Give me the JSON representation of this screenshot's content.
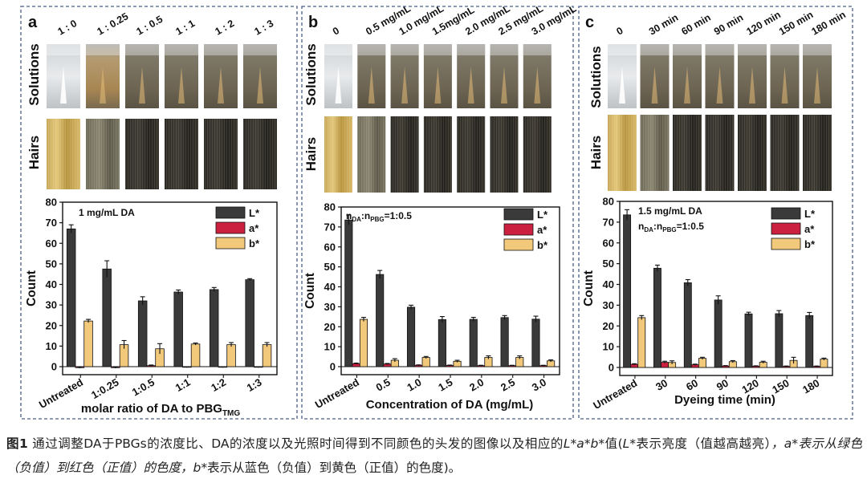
{
  "caption": {
    "label": "图1",
    "text_1": "通过调整DA于PBGs的浓度比、DA的浓度以及光照时间得到不同颜色的头发的图像以及相应的",
    "lab_symbol": "L*a*b*",
    "text_2": "值(",
    "l_symbol": "L*",
    "text_3": "表示亮度（值越高越亮）",
    "a_phrase": "，a*表示从绿色（负值）到红色（正值）的色度，",
    "b_symbol": "b*",
    "text_4": "表示从蓝色（负值）到黄色（正值）的色度)。"
  },
  "legend_labels": {
    "L": "L*",
    "a": "a*",
    "b": "b*"
  },
  "colors": {
    "L": "#3a3a3a",
    "a": "#cc2040",
    "b": "#f2c97a",
    "frame": "#4a5f8c"
  },
  "row_labels": {
    "solutions": "Solutions",
    "hairs": "Hairs"
  },
  "chart_data": [
    {
      "panel": "a",
      "type": "bar",
      "photo_labels": [
        "1 : 0",
        "1 : 0.25",
        "1 : 0.5",
        "1 : 1",
        "1 : 2",
        "1 : 3"
      ],
      "categories": [
        "Untreated",
        "1:0.25",
        "1:0.5",
        "1:1",
        "1:2",
        "1:3"
      ],
      "series": [
        {
          "name": "L*",
          "values": [
            67,
            47.5,
            32,
            36.3,
            37.5,
            42.3
          ],
          "errors": [
            2,
            4,
            2,
            1,
            1,
            0.5
          ]
        },
        {
          "name": "a*",
          "values": [
            -0.5,
            -0.5,
            0.5,
            -0.3,
            -0.3,
            -0.3
          ],
          "errors": [
            0.3,
            0.3,
            0.3,
            0.2,
            0.2,
            0.2
          ]
        },
        {
          "name": "b*",
          "values": [
            22.2,
            10.7,
            8.7,
            11,
            10.7,
            10.7
          ],
          "errors": [
            0.8,
            2,
            2.5,
            0.5,
            1,
            1
          ]
        }
      ],
      "annotation": "1 mg/mL DA",
      "xlabel": "molar ratio of DA to PBG",
      "xlabel_sub": "TMG",
      "ylabel": "Count",
      "ylim": [
        0,
        80
      ],
      "yticks": [
        0,
        10,
        20,
        30,
        40,
        50,
        60,
        70,
        80
      ]
    },
    {
      "panel": "b",
      "type": "bar",
      "photo_labels": [
        "0",
        "0.5 mg/mL",
        "1.0 mg/mL",
        "1.5mg/mL",
        "2.0 mg/mL",
        "2.5 mg/mL",
        "3.0 mg/mL"
      ],
      "categories": [
        "Untreated",
        "0.5",
        "1.0",
        "1.5",
        "2.0",
        "2.5",
        "3.0"
      ],
      "series": [
        {
          "name": "L*",
          "values": [
            73.5,
            46.2,
            29.8,
            23.6,
            23.7,
            24.6,
            23.8
          ],
          "errors": [
            2.5,
            2,
            1,
            1.5,
            1,
            1,
            1.5
          ]
        },
        {
          "name": "a*",
          "values": [
            1.5,
            1.3,
            0.7,
            0.6,
            0.5,
            0.5,
            0.5
          ],
          "errors": [
            0.3,
            0.3,
            0.2,
            0.2,
            0.2,
            0.2,
            0.2
          ]
        },
        {
          "name": "b*",
          "values": [
            23.7,
            3.2,
            4.6,
            2.7,
            4.6,
            4.6,
            2.9
          ],
          "errors": [
            1,
            0.8,
            0.5,
            0.5,
            0.8,
            0.8,
            0.5
          ]
        }
      ],
      "annotation": "n",
      "annotation_sub1": "DA",
      "annotation_mid": ":n",
      "annotation_sub2": "PBG",
      "annotation_end": "=1:0.5",
      "xlabel": "Concentration of DA (mg/mL)",
      "ylabel": "Count",
      "ylim": [
        0,
        80
      ],
      "yticks": [
        0,
        10,
        20,
        30,
        40,
        50,
        60,
        70,
        80
      ]
    },
    {
      "panel": "c",
      "type": "bar",
      "photo_labels": [
        "0",
        "30 min",
        "60 min",
        "90 min",
        "120 min",
        "150 min",
        "180 min"
      ],
      "categories": [
        "Untreated",
        "30",
        "60",
        "90",
        "120",
        "150",
        "180"
      ],
      "series": [
        {
          "name": "L*",
          "values": [
            73.5,
            47.8,
            40.8,
            32.5,
            25.8,
            25.9,
            25
          ],
          "errors": [
            2.5,
            1.5,
            1.5,
            2,
            0.8,
            1.5,
            1.5
          ]
        },
        {
          "name": "a*",
          "values": [
            1.5,
            2.5,
            1.3,
            0.7,
            0.6,
            0.5,
            0.5
          ],
          "errors": [
            0.3,
            0.5,
            0.3,
            0.2,
            0.2,
            0.2,
            0.2
          ]
        },
        {
          "name": "b*",
          "values": [
            24,
            2.4,
            4.4,
            2.8,
            2.5,
            3.4,
            4
          ],
          "errors": [
            1,
            0.8,
            0.5,
            0.5,
            0.5,
            1.5,
            0.5
          ]
        }
      ],
      "annotation": "1.5 mg/mL DA",
      "annotation2": "n",
      "annotation2_sub1": "DA",
      "annotation2_mid": ":n",
      "annotation2_sub2": "PBG",
      "annotation2_end": "=1:0.5",
      "xlabel": "Dyeing time (min)",
      "ylabel": "Count",
      "ylim": [
        0,
        80
      ],
      "yticks": [
        0,
        10,
        20,
        30,
        40,
        50,
        60,
        70,
        80
      ]
    }
  ]
}
